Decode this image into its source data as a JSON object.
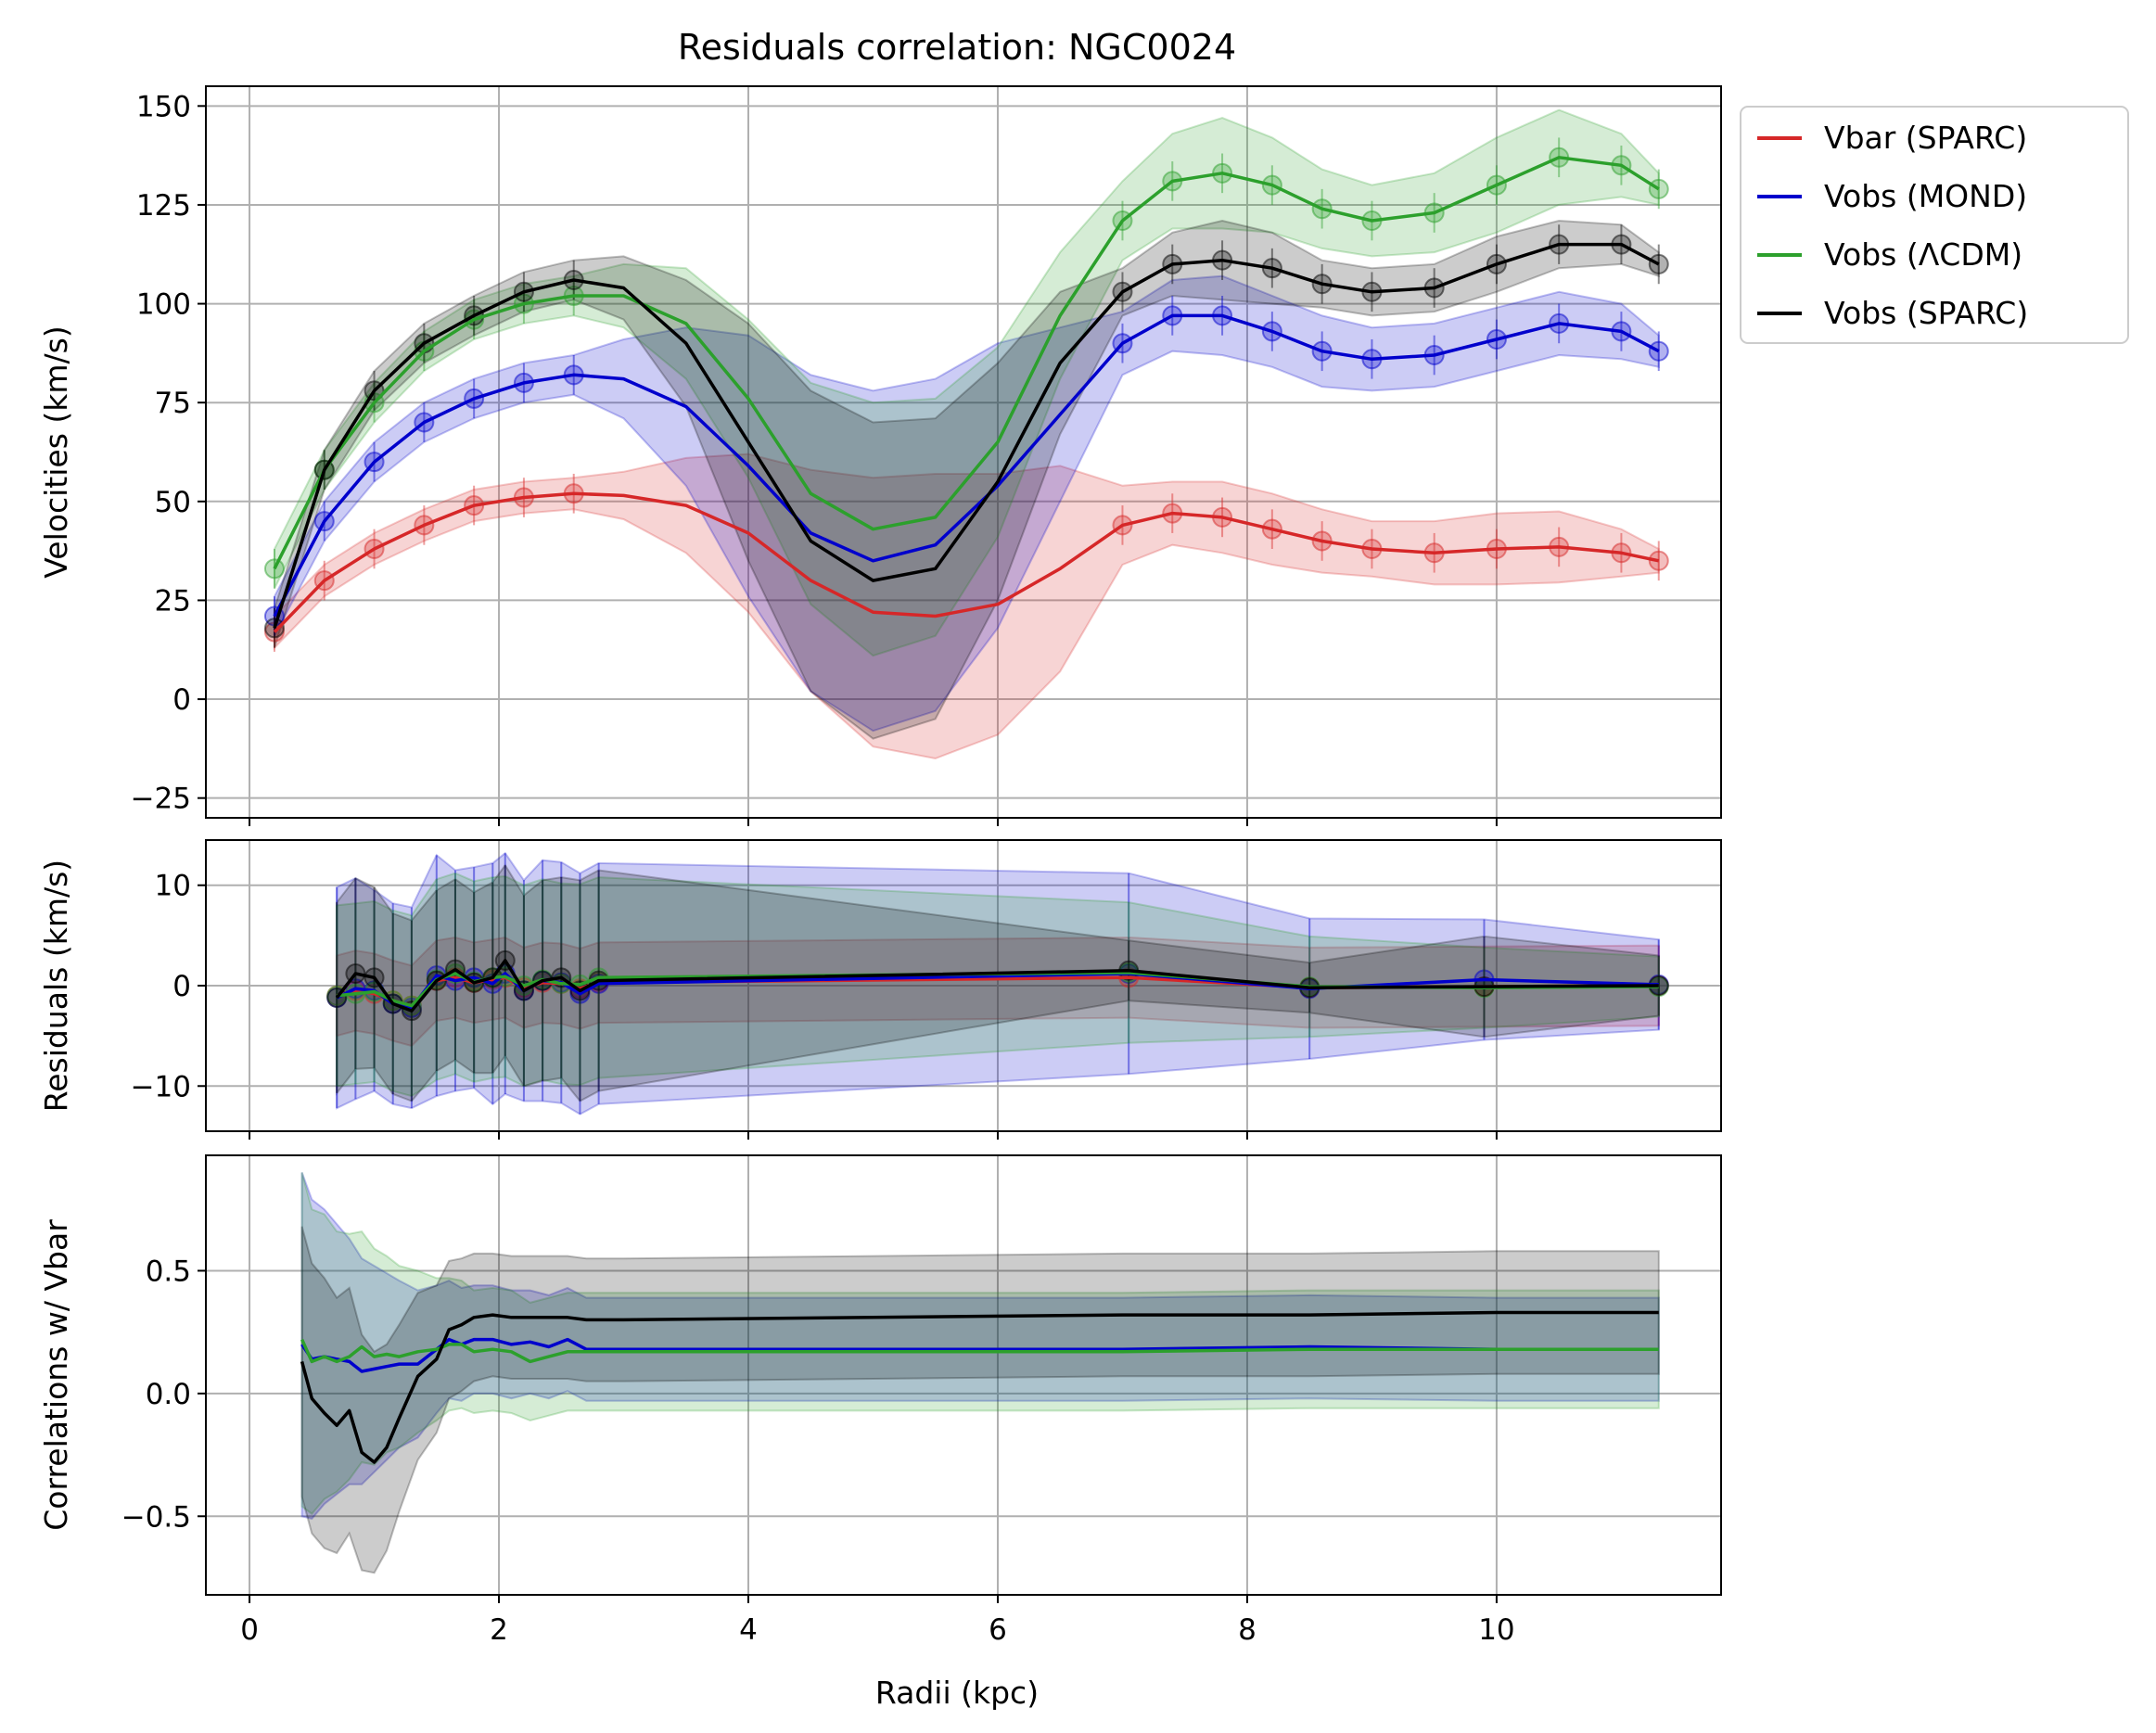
{
  "chart_data": {
    "type": "line",
    "title": "Residuals correlation: NGC0024",
    "xlabel": "Radii (kpc)",
    "xlim": [
      -0.35,
      11.8
    ],
    "xticks": [
      0,
      2,
      4,
      6,
      8,
      10
    ],
    "grid": true,
    "legend": {
      "placement": "outside-top-right",
      "entries": [
        {
          "label": "Vbar (SPARC)",
          "color": "#d62728"
        },
        {
          "label": "Vobs (MOND)",
          "color": "#0000cc"
        },
        {
          "label": "Vobs (ΛCDM)",
          "color": "#2ca02c"
        },
        {
          "label": "Vobs (SPARC)",
          "color": "#000000"
        }
      ]
    },
    "panels": [
      {
        "id": "velocities",
        "ylabel": "Velocities (km/s)",
        "ylim": [
          -30,
          155
        ],
        "yticks": [
          -25,
          0,
          25,
          50,
          75,
          100,
          125,
          150
        ],
        "series": [
          {
            "name": "Vbar (SPARC)",
            "color": "#d62728",
            "x": [
              0.2,
              0.6,
              1.0,
              1.4,
              1.8,
              2.2,
              2.6,
              3.0,
              3.5,
              4.0,
              4.5,
              5.0,
              5.5,
              6.0,
              6.5,
              7.0,
              7.4,
              7.8,
              8.2,
              8.6,
              9.0,
              9.5,
              10.0,
              10.5,
              11.0,
              11.3
            ],
            "y": [
              17,
              30,
              38,
              44,
              49,
              51,
              52,
              51.5,
              49,
              42,
              30,
              22,
              21,
              24,
              33,
              44,
              47,
              46,
              43,
              40,
              38,
              37,
              38,
              38.5,
              37,
              35
            ],
            "band": [
              4,
              4,
              4,
              4,
              4,
              4,
              4,
              6,
              12,
              20,
              28,
              34,
              36,
              33,
              26,
              10,
              8,
              9,
              9,
              8,
              7,
              8,
              9,
              9,
              6,
              3
            ]
          },
          {
            "name": "Vobs (MOND)",
            "color": "#0000cc",
            "x": [
              0.2,
              0.6,
              1.0,
              1.4,
              1.8,
              2.2,
              2.6,
              3.0,
              3.5,
              4.0,
              4.5,
              5.0,
              5.5,
              6.0,
              6.5,
              7.0,
              7.4,
              7.8,
              8.2,
              8.6,
              9.0,
              9.5,
              10.0,
              10.5,
              11.0,
              11.3
            ],
            "y": [
              21,
              45,
              60,
              70,
              76,
              80,
              82,
              81,
              74,
              59,
              42,
              35,
              39,
              54,
              72,
              90,
              97,
              97,
              93,
              88,
              86,
              87,
              91,
              95,
              93,
              88
            ],
            "band": [
              5,
              5,
              5,
              5,
              5,
              5,
              5,
              10,
              20,
              33,
              40,
              43,
              42,
              36,
              22,
              8,
              9,
              10,
              9,
              9,
              8,
              8,
              8,
              8,
              7,
              4
            ]
          },
          {
            "name": "Vobs (ΛCDM)",
            "color": "#2ca02c",
            "x": [
              0.2,
              0.6,
              1.0,
              1.4,
              1.8,
              2.2,
              2.6,
              3.0,
              3.5,
              4.0,
              4.5,
              5.0,
              5.5,
              6.0,
              6.5,
              7.0,
              7.4,
              7.8,
              8.2,
              8.6,
              9.0,
              9.5,
              10.0,
              10.5,
              11.0,
              11.3
            ],
            "y": [
              33,
              58,
              75,
              88,
              96,
              100,
              102,
              102,
              95,
              76,
              52,
              43,
              46,
              65,
              97,
              121,
              131,
              133,
              130,
              124,
              121,
              123,
              130,
              137,
              135,
              129
            ],
            "band": [
              5,
              5,
              5,
              5,
              5,
              5,
              5,
              8,
              14,
              20,
              28,
              32,
              30,
              24,
              16,
              10,
              12,
              14,
              12,
              10,
              9,
              10,
              12,
              12,
              8,
              4
            ]
          },
          {
            "name": "Vobs (SPARC)",
            "color": "#000000",
            "x": [
              0.2,
              0.6,
              1.0,
              1.4,
              1.8,
              2.2,
              2.6,
              3.0,
              3.5,
              4.0,
              4.5,
              5.0,
              5.5,
              6.0,
              6.5,
              7.0,
              7.4,
              7.8,
              8.2,
              8.6,
              9.0,
              9.5,
              10.0,
              10.5,
              11.0,
              11.3
            ],
            "y": [
              18,
              58,
              78,
              90,
              97,
              103,
              106,
              104,
              90,
              65,
              40,
              30,
              33,
              55,
              85,
              103,
              110,
              111,
              109,
              105,
              103,
              104,
              110,
              115,
              115,
              110
            ],
            "band": [
              5,
              5,
              5,
              5,
              5,
              5,
              5,
              8,
              16,
              30,
              38,
              40,
              38,
              30,
              18,
              6,
              8,
              10,
              9,
              6,
              6,
              6,
              7,
              6,
              5,
              3
            ]
          }
        ]
      },
      {
        "id": "residuals",
        "ylabel": "Residuals (km/s)",
        "ylim": [
          -14.5,
          14.5
        ],
        "yticks": [
          -10,
          0,
          10
        ],
        "series": [
          {
            "name": "Vbar (SPARC)",
            "color": "#d62728",
            "x": [
              0.7,
              0.85,
              1.0,
              1.15,
              1.3,
              1.5,
              1.65,
              1.8,
              1.95,
              2.05,
              2.2,
              2.35,
              2.5,
              2.65,
              2.8,
              7.05,
              8.5,
              9.9,
              11.3
            ],
            "y": [
              -1,
              -0.5,
              -0.8,
              -1.5,
              -2,
              0.5,
              0.8,
              0.3,
              0.6,
              0.8,
              -0.2,
              0.3,
              0.2,
              -0.3,
              0.3,
              0.8,
              -0.2,
              -0.1,
              0
            ],
            "band": [
              4,
              4,
              4,
              4,
              4,
              4,
              4,
              4,
              4,
              4,
              4,
              4,
              4,
              4,
              4,
              4,
              4,
              4,
              4
            ]
          },
          {
            "name": "Vobs (MOND)",
            "color": "#0000cc",
            "x": [
              0.7,
              0.85,
              1.0,
              1.15,
              1.3,
              1.5,
              1.65,
              1.8,
              1.95,
              2.05,
              2.2,
              2.35,
              2.5,
              2.65,
              2.8,
              7.05,
              8.5,
              9.9,
              11.3
            ],
            "y": [
              -1.2,
              -0.3,
              -0.5,
              -1.8,
              -2.2,
              1,
              0.5,
              0.8,
              0.2,
              1.2,
              -0.5,
              0.5,
              0.3,
              -0.8,
              0.2,
              1.2,
              -0.3,
              0.6,
              0.1
            ],
            "band": [
              11,
              11,
              10,
              10,
              10,
              12,
              11,
              11,
              12,
              12,
              11,
              12,
              12,
              12,
              12,
              10,
              7,
              6,
              4.5
            ]
          },
          {
            "name": "Vobs (ΛCDM)",
            "color": "#2ca02c",
            "x": [
              0.7,
              0.85,
              1.0,
              1.15,
              1.3,
              1.5,
              1.65,
              1.8,
              1.95,
              2.05,
              2.2,
              2.35,
              2.5,
              2.65,
              2.8,
              7.05,
              8.5,
              9.9,
              11.3
            ],
            "y": [
              -1,
              -0.8,
              -0.6,
              -1.5,
              -2,
              0.6,
              1.2,
              0.4,
              0.8,
              0.9,
              0,
              0.6,
              0.2,
              0.1,
              0.8,
              1.3,
              -0.1,
              -0.2,
              -0.1
            ],
            "band": [
              9,
              9,
              9,
              9,
              9,
              10,
              10,
              10,
              10,
              10,
              10,
              10,
              10,
              10,
              10,
              7,
              5,
              4,
              3
            ]
          },
          {
            "name": "Vobs (SPARC)",
            "color": "#000000",
            "x": [
              0.7,
              0.85,
              1.0,
              1.15,
              1.3,
              1.5,
              1.65,
              1.8,
              1.95,
              2.05,
              2.2,
              2.35,
              2.5,
              2.65,
              2.8,
              7.05,
              8.5,
              9.9,
              11.3
            ],
            "y": [
              -1.2,
              1.2,
              0.8,
              -1.8,
              -2.5,
              0.5,
              1.6,
              0.3,
              0.8,
              2.5,
              -0.5,
              0.5,
              0.8,
              -0.5,
              0.5,
              1.5,
              -0.2,
              -0.1,
              0
            ],
            "band": [
              9.5,
              9.5,
              9,
              9,
              9,
              9,
              9,
              9,
              9.5,
              9.5,
              9.5,
              10,
              10,
              11,
              11,
              3,
              2.5,
              5,
              3
            ]
          }
        ]
      },
      {
        "id": "correlations",
        "ylabel": "Correlations w/ Vbar",
        "ylim": [
          -0.82,
          0.97
        ],
        "yticks": [
          -0.5,
          0.0,
          0.5
        ],
        "series": [
          {
            "name": "Vobs (MOND)",
            "color": "#0000cc",
            "x": [
              0.42,
              0.5,
              0.6,
              0.7,
              0.8,
              0.9,
              1.0,
              1.1,
              1.2,
              1.35,
              1.5,
              1.6,
              1.7,
              1.8,
              1.95,
              2.1,
              2.25,
              2.4,
              2.55,
              2.7,
              3.0,
              5.0,
              7.0,
              8.5,
              10.0,
              11.3
            ],
            "y": [
              0.2,
              0.14,
              0.15,
              0.14,
              0.13,
              0.09,
              0.1,
              0.11,
              0.12,
              0.12,
              0.18,
              0.22,
              0.2,
              0.22,
              0.22,
              0.2,
              0.21,
              0.19,
              0.22,
              0.18,
              0.18,
              0.18,
              0.18,
              0.19,
              0.18,
              0.18
            ],
            "band": [
              0.7,
              0.65,
              0.6,
              0.55,
              0.5,
              0.46,
              0.42,
              0.38,
              0.34,
              0.3,
              0.26,
              0.24,
              0.23,
              0.22,
              0.22,
              0.22,
              0.21,
              0.21,
              0.21,
              0.21,
              0.21,
              0.21,
              0.21,
              0.21,
              0.21,
              0.21
            ]
          },
          {
            "name": "Vobs (ΛCDM)",
            "color": "#2ca02c",
            "x": [
              0.42,
              0.5,
              0.6,
              0.7,
              0.8,
              0.9,
              1.0,
              1.1,
              1.2,
              1.35,
              1.5,
              1.6,
              1.7,
              1.8,
              1.95,
              2.1,
              2.25,
              2.4,
              2.55,
              2.7,
              3.0,
              5.0,
              7.0,
              8.5,
              10.0,
              11.3
            ],
            "y": [
              0.22,
              0.13,
              0.15,
              0.13,
              0.15,
              0.19,
              0.15,
              0.16,
              0.15,
              0.17,
              0.18,
              0.2,
              0.2,
              0.17,
              0.18,
              0.17,
              0.13,
              0.15,
              0.17,
              0.17,
              0.17,
              0.17,
              0.17,
              0.18,
              0.18,
              0.18
            ],
            "band": [
              0.68,
              0.62,
              0.58,
              0.53,
              0.5,
              0.47,
              0.44,
              0.4,
              0.37,
              0.33,
              0.29,
              0.27,
              0.26,
              0.25,
              0.25,
              0.25,
              0.24,
              0.24,
              0.24,
              0.24,
              0.24,
              0.24,
              0.24,
              0.24,
              0.24,
              0.24
            ]
          },
          {
            "name": "Vobs (SPARC)",
            "color": "#000000",
            "x": [
              0.42,
              0.5,
              0.6,
              0.7,
              0.8,
              0.9,
              1.0,
              1.1,
              1.2,
              1.35,
              1.5,
              1.6,
              1.7,
              1.8,
              1.95,
              2.1,
              2.25,
              2.4,
              2.55,
              2.7,
              3.0,
              5.0,
              7.0,
              8.5,
              10.0,
              11.3
            ],
            "y": [
              0.13,
              -0.02,
              -0.08,
              -0.13,
              -0.07,
              -0.24,
              -0.28,
              -0.22,
              -0.1,
              0.07,
              0.14,
              0.26,
              0.28,
              0.31,
              0.32,
              0.31,
              0.31,
              0.31,
              0.31,
              0.3,
              0.3,
              0.31,
              0.32,
              0.32,
              0.33,
              0.33
            ],
            "band": [
              0.55,
              0.55,
              0.55,
              0.52,
              0.5,
              0.48,
              0.45,
              0.42,
              0.38,
              0.34,
              0.3,
              0.28,
              0.27,
              0.26,
              0.25,
              0.25,
              0.25,
              0.25,
              0.25,
              0.25,
              0.25,
              0.25,
              0.25,
              0.25,
              0.25,
              0.25
            ]
          }
        ]
      }
    ]
  }
}
